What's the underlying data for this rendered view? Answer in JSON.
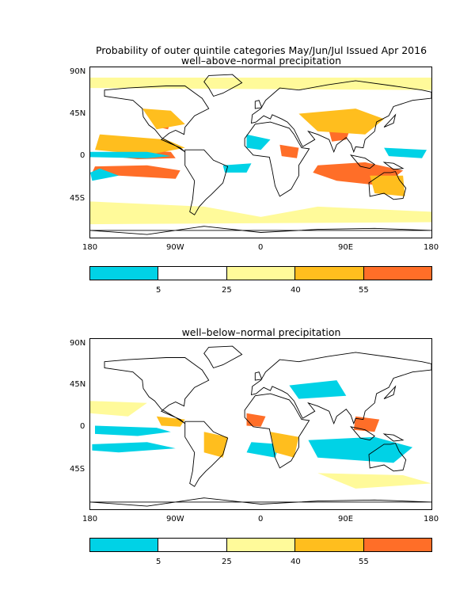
{
  "figure": {
    "title": "Probability of outer quintile categories May/Jun/Jul Issued Apr 2016"
  },
  "axes": {
    "lat_labels": [
      "90N",
      "45N",
      "0",
      "45S"
    ],
    "lon_labels": [
      "180",
      "90W",
      "0",
      "90E",
      "180"
    ]
  },
  "colorbar": {
    "colors": [
      "#00d2e6",
      "#ffffff",
      "#fffa9a",
      "#ffbe1e",
      "#ff6e28"
    ],
    "tick_labels": [
      "5",
      "25",
      "40",
      "55"
    ]
  },
  "panels": [
    {
      "subtitle": "well–above–normal precipitation",
      "regions": [
        {
          "color": "#ff6e28",
          "poly": [
            [
              -140,
              10
            ],
            [
              -95,
              8
            ],
            [
              -90,
              2
            ],
            [
              -130,
              1
            ],
            [
              -160,
              4
            ]
          ]
        },
        {
          "color": "#ff6e28",
          "poly": [
            [
              -175,
              -6
            ],
            [
              -120,
              -5
            ],
            [
              -85,
              -10
            ],
            [
              -90,
              -18
            ],
            [
              -150,
              -15
            ],
            [
              -178,
              -12
            ]
          ]
        },
        {
          "color": "#ff6e28",
          "poly": [
            [
              60,
              -5
            ],
            [
              110,
              -2
            ],
            [
              150,
              -10
            ],
            [
              130,
              -25
            ],
            [
              80,
              -20
            ],
            [
              55,
              -12
            ]
          ]
        },
        {
          "color": "#ff6e28",
          "poly": [
            [
              70,
              35
            ],
            [
              95,
              32
            ],
            [
              90,
              20
            ],
            [
              75,
              18
            ]
          ]
        },
        {
          "color": "#ff6e28",
          "poly": [
            [
              -110,
              40
            ],
            [
              -95,
              38
            ],
            [
              -98,
              30
            ],
            [
              -108,
              32
            ]
          ]
        },
        {
          "color": "#ff6e28",
          "poly": [
            [
              20,
              15
            ],
            [
              40,
              12
            ],
            [
              38,
              2
            ],
            [
              22,
              4
            ]
          ]
        },
        {
          "color": "#ffbe1e",
          "poly": [
            [
              -170,
              25
            ],
            [
              -100,
              20
            ],
            [
              -80,
              12
            ],
            [
              -120,
              5
            ],
            [
              -175,
              10
            ]
          ]
        },
        {
          "color": "#ffbe1e",
          "poly": [
            [
              40,
              45
            ],
            [
              100,
              50
            ],
            [
              130,
              40
            ],
            [
              110,
              25
            ],
            [
              60,
              28
            ]
          ]
        },
        {
          "color": "#ffbe1e",
          "poly": [
            [
              115,
              -15
            ],
            [
              150,
              -15
            ],
            [
              152,
              -35
            ],
            [
              120,
              -32
            ]
          ]
        },
        {
          "color": "#ffbe1e",
          "poly": [
            [
              -125,
              50
            ],
            [
              -95,
              48
            ],
            [
              -80,
              35
            ],
            [
              -110,
              30
            ]
          ]
        },
        {
          "color": "#00d2e6",
          "poly": [
            [
              -180,
              8
            ],
            [
              -120,
              8
            ],
            [
              -95,
              4
            ],
            [
              -120,
              2
            ],
            [
              -180,
              3
            ]
          ]
        },
        {
          "color": "#00d2e6",
          "poly": [
            [
              -180,
              -12
            ],
            [
              -170,
              -8
            ],
            [
              -150,
              -15
            ],
            [
              -178,
              -20
            ]
          ]
        },
        {
          "color": "#00d2e6",
          "poly": [
            [
              -15,
              25
            ],
            [
              10,
              20
            ],
            [
              0,
              10
            ],
            [
              -15,
              12
            ]
          ]
        },
        {
          "color": "#00d2e6",
          "poly": [
            [
              130,
              12
            ],
            [
              175,
              10
            ],
            [
              170,
              2
            ],
            [
              135,
              4
            ]
          ]
        },
        {
          "color": "#00d2e6",
          "poly": [
            [
              -40,
              -5
            ],
            [
              -10,
              -3
            ],
            [
              -15,
              -12
            ],
            [
              -38,
              -12
            ]
          ]
        },
        {
          "color": "#fffa9a",
          "poly": [
            [
              -180,
              -40
            ],
            [
              -60,
              -45
            ],
            [
              0,
              -55
            ],
            [
              60,
              -45
            ],
            [
              180,
              -50
            ],
            [
              180,
              -60
            ],
            [
              -180,
              -62
            ]
          ]
        },
        {
          "color": "#fffa9a",
          "poly": [
            [
              -180,
              80
            ],
            [
              180,
              80
            ],
            [
              180,
              68
            ],
            [
              -180,
              70
            ]
          ]
        }
      ]
    },
    {
      "subtitle": "well–below–normal precipitation",
      "regions": [
        {
          "color": "#00d2e6",
          "poly": [
            [
              -175,
              6
            ],
            [
              -110,
              4
            ],
            [
              -95,
              0
            ],
            [
              -130,
              -4
            ],
            [
              -175,
              -2
            ]
          ]
        },
        {
          "color": "#00d2e6",
          "poly": [
            [
              -178,
              -12
            ],
            [
              -120,
              -10
            ],
            [
              -90,
              -16
            ],
            [
              -150,
              -20
            ],
            [
              -178,
              -18
            ]
          ]
        },
        {
          "color": "#00d2e6",
          "poly": [
            [
              50,
              -8
            ],
            [
              120,
              -5
            ],
            [
              160,
              -15
            ],
            [
              140,
              -30
            ],
            [
              60,
              -25
            ]
          ]
        },
        {
          "color": "#00d2e6",
          "poly": [
            [
              30,
              45
            ],
            [
              80,
              50
            ],
            [
              90,
              35
            ],
            [
              40,
              32
            ]
          ]
        },
        {
          "color": "#00d2e6",
          "poly": [
            [
              -10,
              -10
            ],
            [
              20,
              -12
            ],
            [
              15,
              -25
            ],
            [
              -15,
              -20
            ]
          ]
        },
        {
          "color": "#ff6e28",
          "poly": [
            [
              -15,
              18
            ],
            [
              5,
              15
            ],
            [
              0,
              5
            ],
            [
              -15,
              6
            ]
          ]
        },
        {
          "color": "#ff6e28",
          "poly": [
            [
              100,
              15
            ],
            [
              125,
              12
            ],
            [
              120,
              0
            ],
            [
              98,
              2
            ]
          ]
        },
        {
          "color": "#ffbe1e",
          "poly": [
            [
              -60,
              0
            ],
            [
              -35,
              -5
            ],
            [
              -40,
              -25
            ],
            [
              -60,
              -20
            ]
          ]
        },
        {
          "color": "#ffbe1e",
          "poly": [
            [
              10,
              0
            ],
            [
              40,
              -5
            ],
            [
              35,
              -25
            ],
            [
              15,
              -20
            ]
          ]
        },
        {
          "color": "#ffbe1e",
          "poly": [
            [
              -110,
              15
            ],
            [
              -80,
              12
            ],
            [
              -85,
              5
            ],
            [
              -105,
              6
            ]
          ]
        },
        {
          "color": "#fffa9a",
          "poly": [
            [
              -180,
              30
            ],
            [
              -120,
              28
            ],
            [
              -140,
              15
            ],
            [
              -180,
              18
            ]
          ]
        },
        {
          "color": "#fffa9a",
          "poly": [
            [
              60,
              -40
            ],
            [
              150,
              -42
            ],
            [
              180,
              -50
            ],
            [
              100,
              -55
            ]
          ]
        }
      ]
    }
  ]
}
